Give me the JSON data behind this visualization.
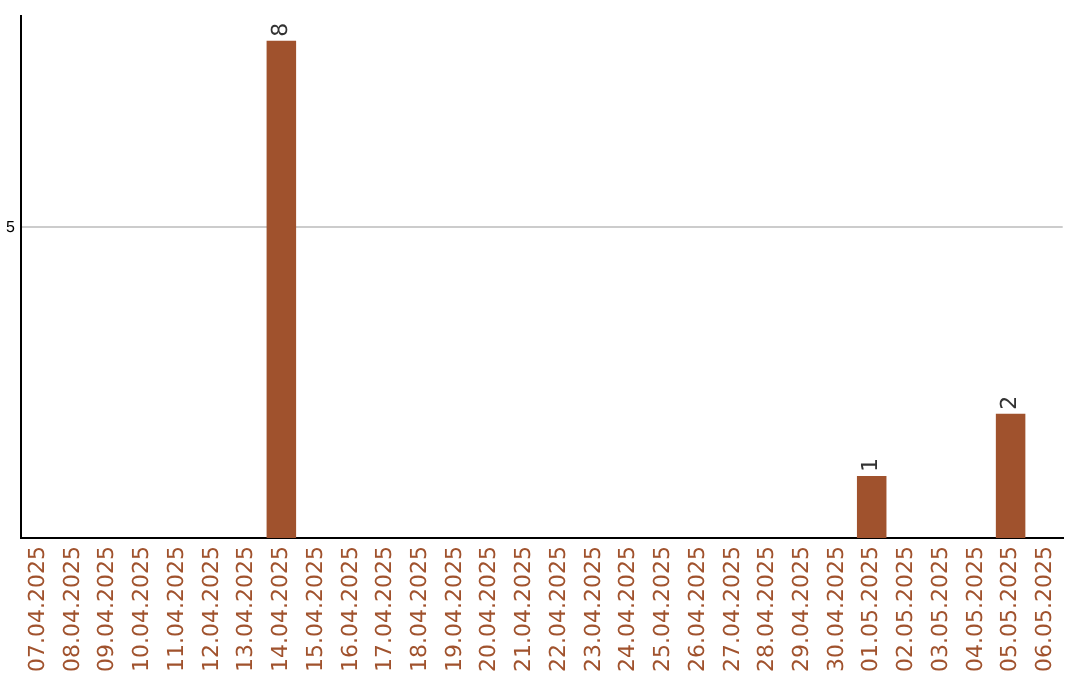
{
  "chart_data": {
    "type": "bar",
    "categories": [
      "07.04.2025",
      "08.04.2025",
      "09.04.2025",
      "10.04.2025",
      "11.04.2025",
      "12.04.2025",
      "13.04.2025",
      "14.04.2025",
      "15.04.2025",
      "16.04.2025",
      "17.04.2025",
      "18.04.2025",
      "19.04.2025",
      "20.04.2025",
      "21.04.2025",
      "22.04.2025",
      "23.04.2025",
      "24.04.2025",
      "25.04.2025",
      "26.04.2025",
      "27.04.2025",
      "28.04.2025",
      "29.04.2025",
      "30.04.2025",
      "01.05.2025",
      "02.05.2025",
      "03.05.2025",
      "04.05.2025",
      "05.05.2025",
      "06.05.2025"
    ],
    "values": [
      0,
      0,
      0,
      0,
      0,
      0,
      0,
      8,
      0,
      0,
      0,
      0,
      0,
      0,
      0,
      0,
      0,
      0,
      0,
      0,
      0,
      0,
      0,
      0,
      1,
      0,
      0,
      0,
      2,
      0
    ],
    "value_labels": [
      null,
      null,
      null,
      null,
      null,
      null,
      null,
      "8",
      null,
      null,
      null,
      null,
      null,
      null,
      null,
      null,
      null,
      null,
      null,
      null,
      null,
      null,
      null,
      null,
      "1",
      null,
      null,
      null,
      "2",
      null
    ],
    "color": "#a0522d",
    "ylim": [
      0,
      8.4
    ],
    "yticks": [
      5
    ],
    "grid": "y",
    "legend": false
  }
}
